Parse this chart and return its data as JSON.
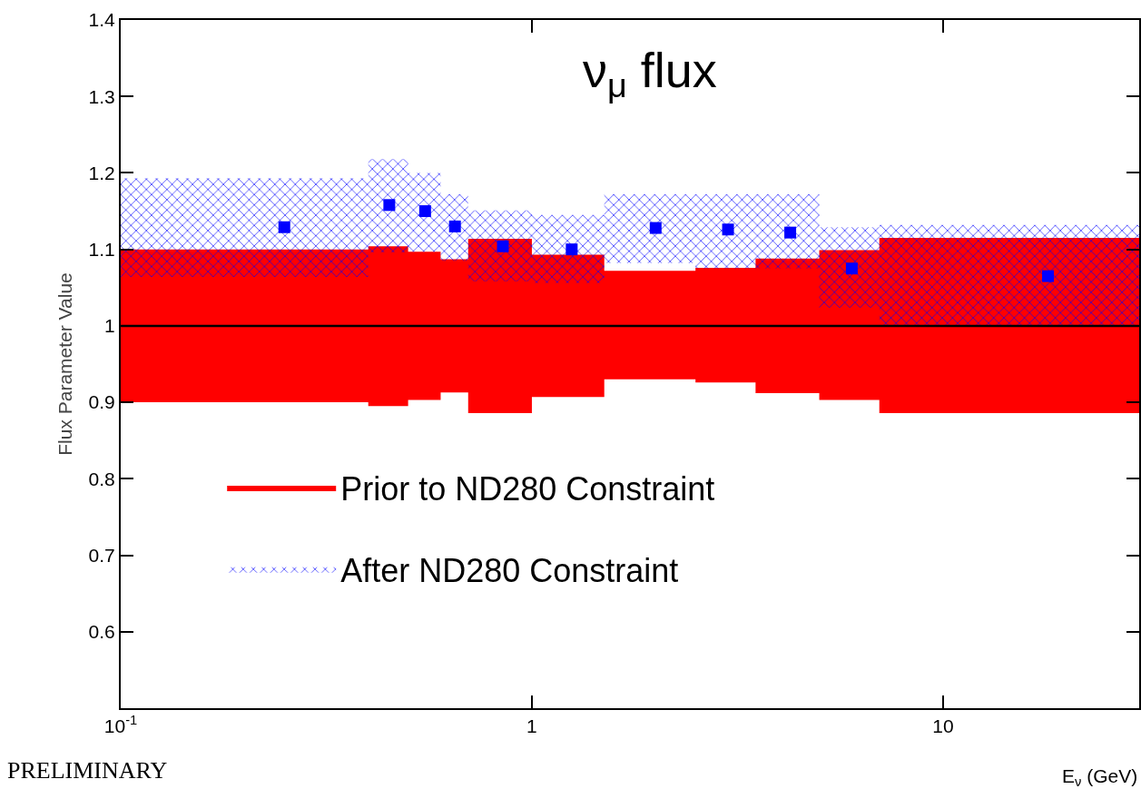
{
  "chart_data": {
    "type": "step",
    "title": "ν$_{μ}$ flux",
    "xlabel": "E$_{ν}$ (GeV)",
    "ylabel": "Flux Parameter Value",
    "annotations": [
      "PRELIMINARY"
    ],
    "log": "x",
    "xlim": [
      0.1,
      30
    ],
    "xticks": [
      {
        "value": 0.1,
        "label": "10$^{-1}$"
      },
      1,
      10
    ],
    "ylim": [
      0.5,
      1.4
    ],
    "yticks": [
      0.6,
      0.7,
      0.8,
      0.9,
      {
        "value": 1,
        "label": "1"
      },
      1.1,
      1.2,
      1.3,
      1.4
    ],
    "ref_lines": [
      {
        "axis": "y",
        "value": 1,
        "color": "#000000"
      }
    ],
    "grid": false,
    "legend": "bottom left",
    "series": [
      {
        "name": "Prior to ND280 Constraint",
        "color": "#ff0000",
        "x": [
          0.1,
          0.4,
          0.5,
          0.6,
          0.7,
          1,
          1.5,
          2.5,
          3.5,
          5,
          7,
          30
        ],
        "values": [
          null,
          null,
          null,
          null,
          null,
          null,
          null,
          null,
          null,
          null,
          null,
          null
        ],
        "lower": [
          0.9,
          0.895,
          0.903,
          0.913,
          0.886,
          0.907,
          0.93,
          0.926,
          0.912,
          0.903,
          0.886,
          0.886
        ],
        "upper": [
          1.1,
          1.104,
          1.097,
          1.087,
          1.114,
          1.093,
          1.072,
          1.076,
          1.088,
          1.099,
          1.115,
          1.115
        ]
      },
      {
        "name": "After ND280 Constraint",
        "color": "#0000ff",
        "x": [
          0.1,
          0.4,
          0.5,
          0.6,
          0.7,
          1,
          1.5,
          2.5,
          3.5,
          5,
          7,
          30
        ],
        "values": [
          null,
          null,
          null,
          null,
          null,
          null,
          null,
          null,
          null,
          null,
          null,
          null
        ],
        "lower": [
          1.064,
          1.096,
          1.097,
          1.085,
          1.058,
          1.056,
          1.082,
          1.075,
          1.075,
          1.024,
          1.0,
          1.0
        ],
        "upper": [
          1.193,
          1.218,
          1.2,
          1.172,
          1.151,
          1.145,
          1.172,
          1.172,
          1.172,
          1.129,
          1.132,
          1.132
        ]
      },
      {
        "type": "scatter",
        "color": "#0000ff",
        "marker": "square",
        "x": [
          0.25,
          0.45,
          0.55,
          0.65,
          0.85,
          1.25,
          2,
          3,
          4.25,
          6,
          18
        ],
        "values": [
          1.129,
          1.158,
          1.15,
          1.13,
          1.104,
          1.1,
          1.128,
          1.126,
          1.122,
          1.075,
          1.065
        ]
      }
    ]
  }
}
